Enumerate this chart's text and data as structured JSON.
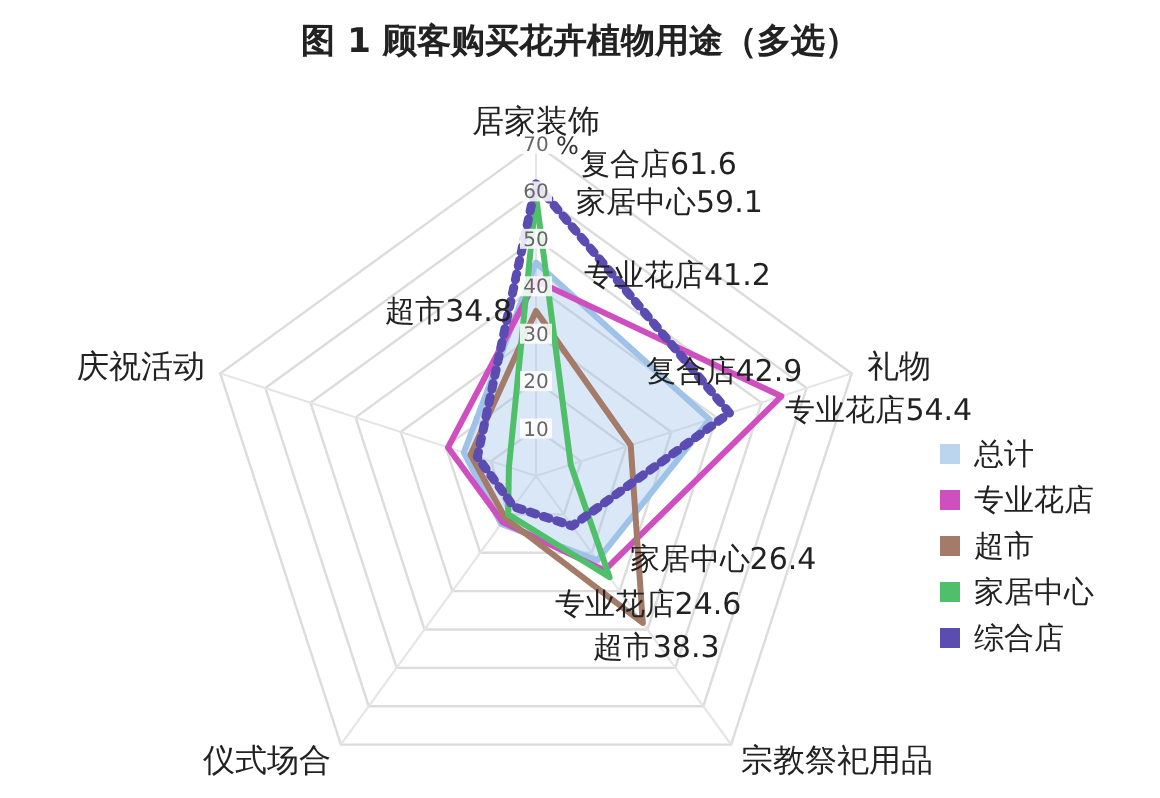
{
  "chart_data": {
    "type": "radar",
    "title": "图 1 顾客购买花卉植物用途（多选）",
    "ylabel": "%",
    "categories": [
      "居家装饰",
      "礼物",
      "宗教祭祀用品",
      "仪式场合",
      "庆祝活动"
    ],
    "ylim": [
      0,
      70
    ],
    "yticks": [
      10,
      20,
      30,
      40,
      50,
      60,
      70
    ],
    "grid": true,
    "legend": "right",
    "series": [
      {
        "name": "总计",
        "type": "area",
        "color": "#9fc3e8",
        "values": [
          45,
          38.5,
          22,
          12.5,
          16
        ]
      },
      {
        "name": "专业花店",
        "color": "#d04fc0",
        "values": [
          41.2,
          54.4,
          24.6,
          12,
          19.5
        ],
        "value_labels": [
          "专业花店41.2",
          "专业花店54.4",
          "专业花店24.6",
          null,
          null
        ]
      },
      {
        "name": "超市",
        "color": "#a47a68",
        "values": [
          34.8,
          21,
          38.3,
          11,
          14.5
        ],
        "value_labels": [
          "超市34.8",
          null,
          "超市38.3",
          null,
          null
        ]
      },
      {
        "name": "家居中心",
        "color": "#4fbf6a",
        "values": [
          59.1,
          7.7,
          26.4,
          10,
          6
        ],
        "value_labels": [
          "家居中心59.1",
          null,
          "家居中心26.4",
          null,
          null
        ]
      },
      {
        "name": "综合店",
        "color": "#5a4cb0",
        "line_style": "dotted",
        "values": [
          61.6,
          42.9,
          13,
          8,
          13
        ],
        "value_labels": [
          "复合店61.6",
          "复合店42.9",
          null,
          null,
          null
        ]
      }
    ]
  }
}
